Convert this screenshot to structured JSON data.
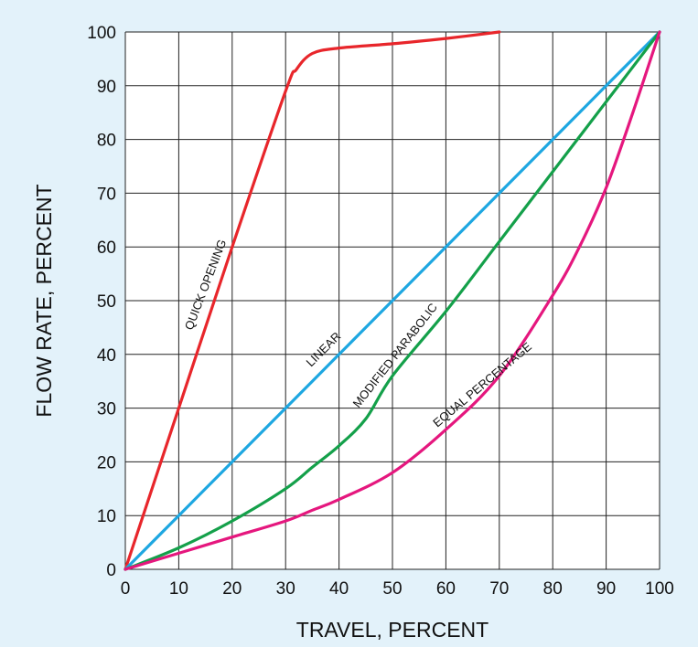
{
  "chart_data": {
    "type": "line",
    "xlabel": "TRAVEL, PERCENT",
    "ylabel": "FLOW RATE, PERCENT",
    "xlim": [
      0,
      100
    ],
    "ylim": [
      0,
      100
    ],
    "grid": true,
    "x_ticks": [
      0,
      10,
      20,
      30,
      40,
      50,
      60,
      70,
      80,
      90,
      100
    ],
    "y_ticks": [
      0,
      10,
      20,
      30,
      40,
      50,
      60,
      70,
      80,
      90,
      100
    ],
    "series": [
      {
        "name": "QUICK OPENING",
        "color": "#e8262b",
        "x": [
          0,
          10,
          20,
          30,
          32,
          35,
          40,
          50,
          60,
          70
        ],
        "y": [
          0,
          30,
          60,
          89,
          93,
          96,
          97,
          97.8,
          98.8,
          100
        ]
      },
      {
        "name": "LINEAR",
        "color": "#1ea7e1",
        "x": [
          0,
          10,
          20,
          30,
          40,
          50,
          60,
          70,
          80,
          90,
          100
        ],
        "y": [
          0,
          10,
          20,
          30,
          40,
          50,
          60,
          70,
          80,
          90,
          100
        ]
      },
      {
        "name": "MODIFIED PARABOLIC",
        "color": "#14a04a",
        "x": [
          0,
          10,
          20,
          30,
          35,
          40,
          45,
          50,
          60,
          70,
          80,
          90,
          100
        ],
        "y": [
          0,
          4,
          9,
          15,
          19,
          23,
          28,
          36,
          48,
          61,
          74,
          87,
          100
        ]
      },
      {
        "name": "EQUAL PERCENTAGE",
        "color": "#e5177e",
        "x": [
          0,
          10,
          20,
          30,
          35,
          40,
          50,
          60,
          70,
          80,
          85,
          90,
          95,
          100
        ],
        "y": [
          0,
          3,
          6,
          9,
          11,
          13,
          18,
          26,
          36,
          51,
          60,
          71,
          85,
          100
        ]
      }
    ]
  }
}
